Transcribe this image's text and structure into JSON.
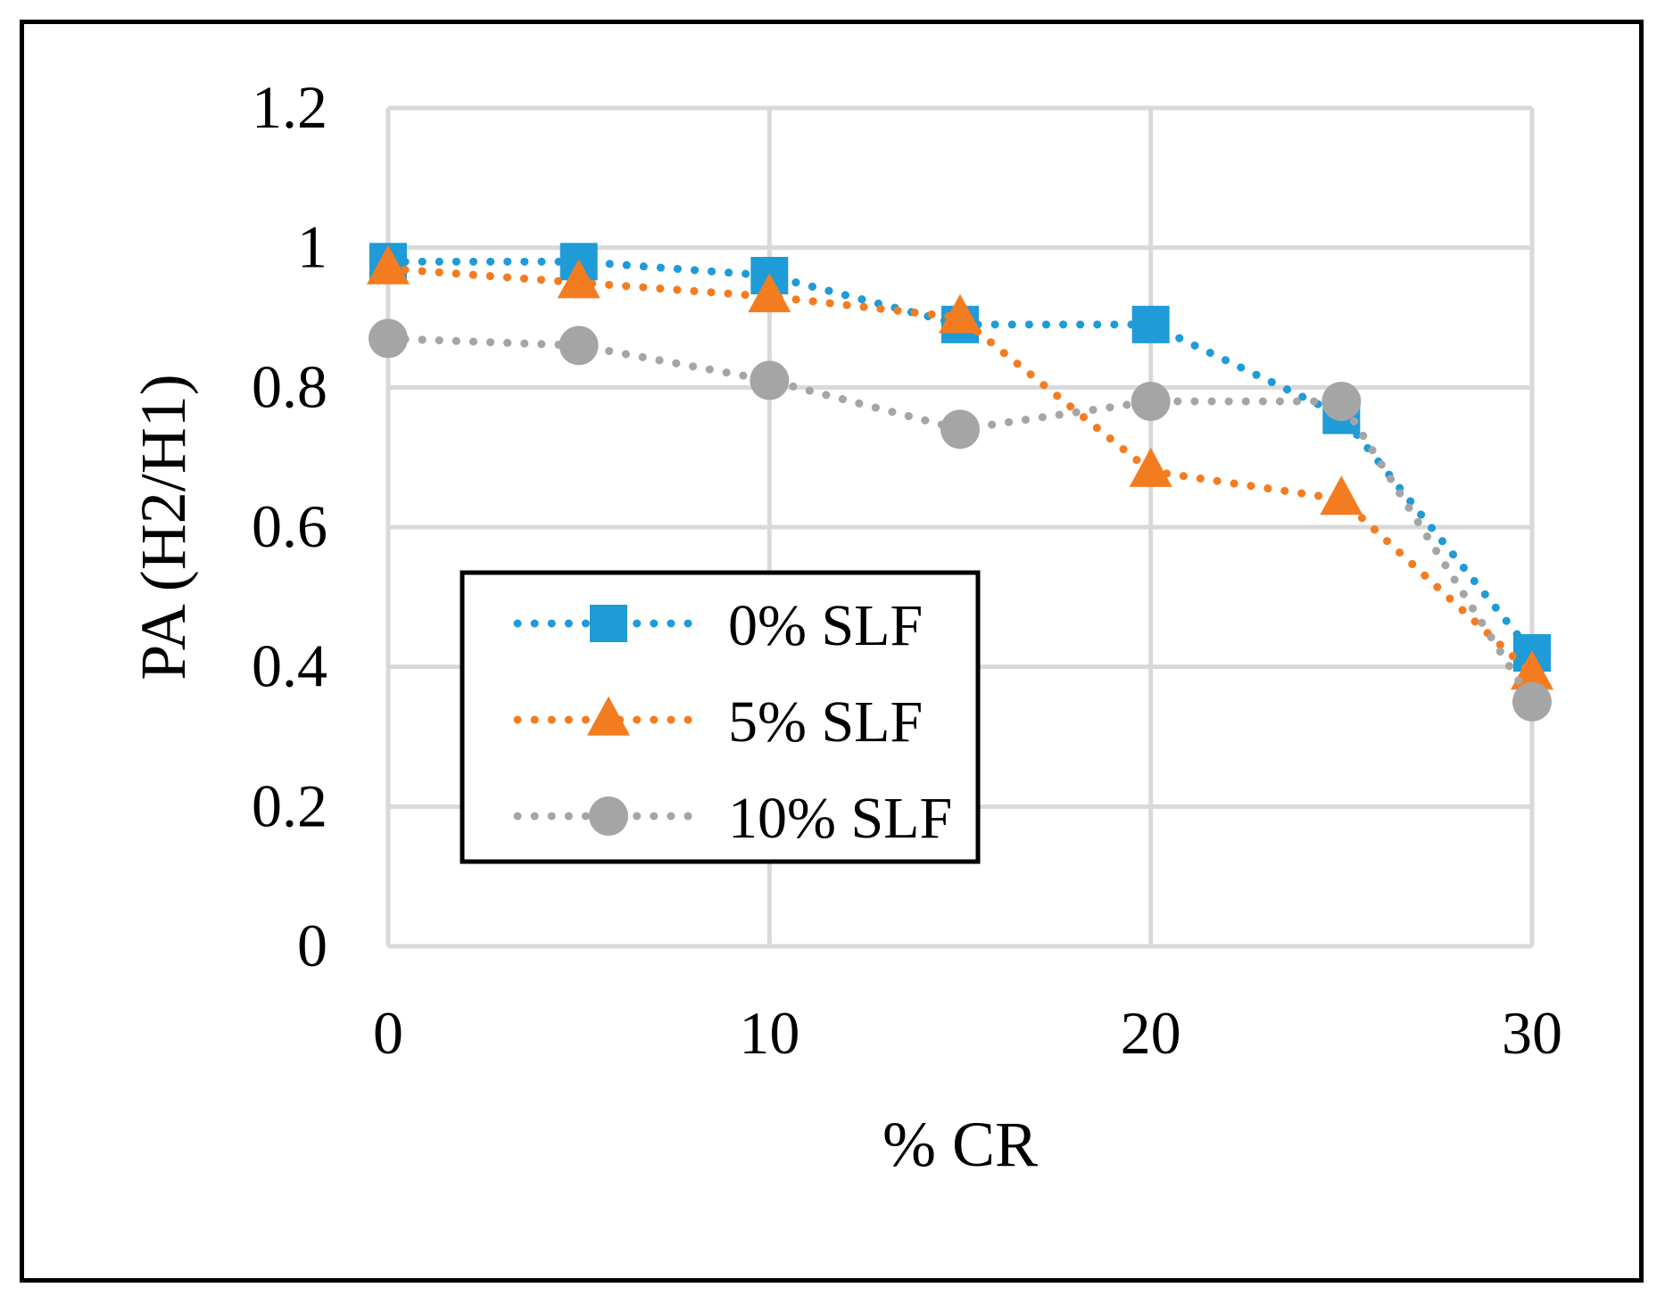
{
  "chart_data": {
    "type": "line",
    "title": "",
    "xlabel": "% CR",
    "ylabel": "PA (H2/H1)",
    "xlim": [
      0,
      30
    ],
    "ylim": [
      0,
      1.2
    ],
    "x_ticks": [
      0,
      10,
      20,
      30
    ],
    "x_tick_labels": [
      "0",
      "10",
      "20",
      "30"
    ],
    "y_ticks": [
      0,
      0.2,
      0.4,
      0.6,
      0.8,
      1,
      1.2
    ],
    "y_tick_labels": [
      "0",
      "0.2",
      "0.4",
      "0.6",
      "0.8",
      "1",
      "1.2"
    ],
    "grid": true,
    "legend_position": "lower-left",
    "x": [
      0,
      5,
      10,
      15,
      20,
      25,
      30
    ],
    "series": [
      {
        "name": "0% SLF",
        "marker": "square",
        "color": "#1f9bd7",
        "line_style": "dotted",
        "values": [
          0.98,
          0.98,
          0.96,
          0.89,
          0.89,
          0.76,
          0.42
        ]
      },
      {
        "name": "5% SLF",
        "marker": "triangle",
        "color": "#f47c20",
        "line_style": "dotted",
        "values": [
          0.97,
          0.95,
          0.93,
          0.9,
          0.68,
          0.64,
          0.39
        ]
      },
      {
        "name": "10% SLF",
        "marker": "circle",
        "color": "#a5a5a5",
        "line_style": "dotted",
        "values": [
          0.87,
          0.86,
          0.81,
          0.74,
          0.78,
          0.78,
          0.35
        ]
      }
    ]
  }
}
